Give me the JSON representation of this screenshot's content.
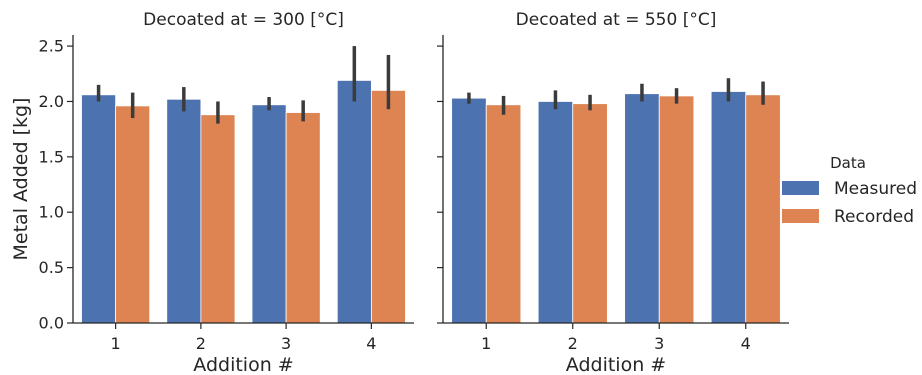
{
  "chart_data": {
    "type": "bar",
    "ylabel": "Metal Added [kg]",
    "ylim": [
      0,
      2.6
    ],
    "yticks": [
      "0.0",
      "0.5",
      "1.0",
      "1.5",
      "2.0",
      "2.5"
    ],
    "grid": false,
    "legend": {
      "title": "Data",
      "placement": "right",
      "entries": [
        "Measured",
        "Recorded"
      ]
    },
    "colors": {
      "Measured": "#4c72b0",
      "Recorded": "#dd8452",
      "error_bar": "#3b3b3b"
    },
    "panels": [
      {
        "title": "Decoated at = 300 [°C]",
        "xlabel": "Addition #",
        "categories": [
          "1",
          "2",
          "3",
          "4"
        ],
        "series": [
          {
            "name": "Measured",
            "values": [
              2.06,
              2.02,
              1.97,
              2.19
            ],
            "err_low": [
              2.0,
              1.91,
              1.92,
              2.0
            ],
            "err_high": [
              2.15,
              2.13,
              2.04,
              2.5
            ]
          },
          {
            "name": "Recorded",
            "values": [
              1.96,
              1.88,
              1.9,
              2.1
            ],
            "err_low": [
              1.85,
              1.8,
              1.82,
              1.93
            ],
            "err_high": [
              2.08,
              2.0,
              2.01,
              2.42
            ]
          }
        ]
      },
      {
        "title": "Decoated at = 550 [°C]",
        "xlabel": "Addition #",
        "categories": [
          "1",
          "2",
          "3",
          "4"
        ],
        "series": [
          {
            "name": "Measured",
            "values": [
              2.03,
              2.0,
              2.07,
              2.09
            ],
            "err_low": [
              1.98,
              1.93,
              2.0,
              2.0
            ],
            "err_high": [
              2.08,
              2.1,
              2.16,
              2.21
            ]
          },
          {
            "name": "Recorded",
            "values": [
              1.97,
              1.98,
              2.05,
              2.06
            ],
            "err_low": [
              1.88,
              1.92,
              1.98,
              1.97
            ],
            "err_high": [
              2.05,
              2.06,
              2.12,
              2.18
            ]
          }
        ]
      }
    ]
  }
}
